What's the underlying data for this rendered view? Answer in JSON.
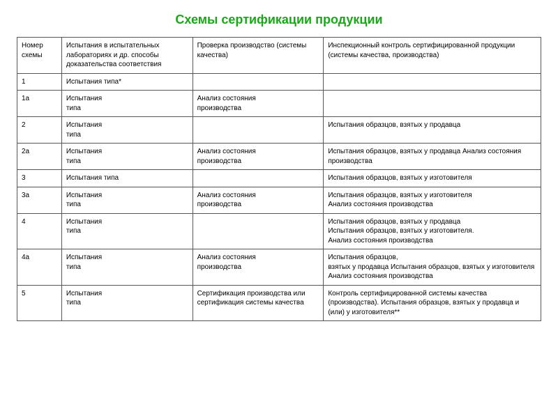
{
  "title": "Схемы сертификации продукции",
  "table": {
    "columns": [
      "Номер схемы",
      "Испытания в испытательных лабораториях и др. способы доказательства соответствия",
      "Проверка производство (системы качества)",
      "Инспекционный контроль сертифицированной продукции (системы качества, производства)"
    ],
    "rows": [
      [
        "1",
        "Испытания типа*",
        "",
        ""
      ],
      [
        "1а",
        "Испытания\nтипа",
        "Анализ состояния\nпроизводства",
        ""
      ],
      [
        "2",
        "Испытания\nтипа",
        "",
        "Испытания образцов, взятых у продавца"
      ],
      [
        "2а",
        "Испытания\nтипа",
        "Анализ состояния\nпроизводства",
        "Испытания образцов, взятых у продавца Анализ состояния производства"
      ],
      [
        "3",
        "Испытания типа",
        "",
        "Испытания образцов, взятых у изготовителя"
      ],
      [
        "3а",
        "Испытания\nтипа",
        "Анализ состояния\nпроизводства",
        "Испытания образцов, взятых у изготовителя\nАнализ состояния производства"
      ],
      [
        "4",
        "Испытания\nтипа",
        "",
        "Испытания образцов, взятых у продавца\nИспытания образцов, взятых у изготовителя.\nАнализ состояния производства"
      ],
      [
        "4а",
        "Испытания\nтипа",
        "Анализ состояния\nпроизводства",
        "Испытания образцов,\nвзятых у продавца Испытания образцов, взятых у изготовителя Анализ состояния производства"
      ],
      [
        "5",
        "Испытания\nтипа",
        "Сертификация производства или сертификация системы качества",
        "Контроль сертифицированной системы качества (производства). Испытания образцов, взятых у продавца и (или) у изготовителя**"
      ]
    ],
    "col_widths_pct": [
      8.5,
      25,
      25,
      41.5
    ],
    "border_color": "#555555",
    "font_size_pt": 10,
    "title_color": "#1aa81a",
    "title_fontsize_pt": 18,
    "background_color": "#ffffff"
  }
}
